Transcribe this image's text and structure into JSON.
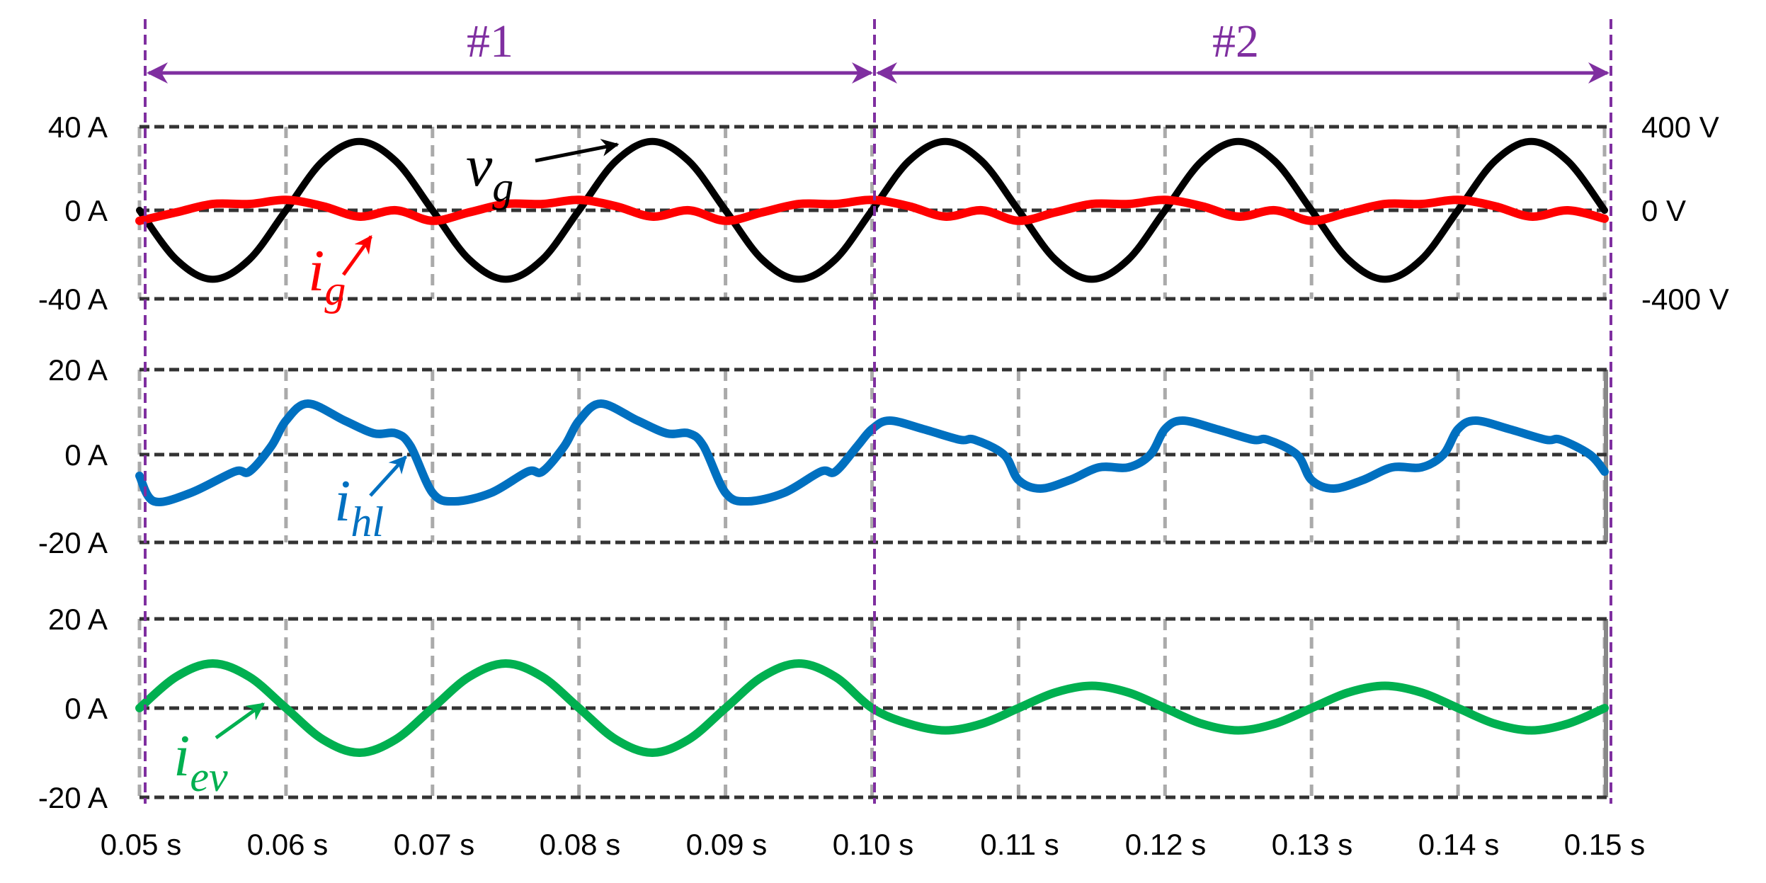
{
  "chart_data": {
    "type": "line",
    "title": "",
    "xlabel": "",
    "x_ticks": [
      "0.05 s",
      "0.06 s",
      "0.07 s",
      "0.08 s",
      "0.09 s",
      "0.10 s",
      "0.11 s",
      "0.12 s",
      "0.13 s",
      "0.14 s",
      "0.15 s"
    ],
    "xlim": [
      0.05,
      0.15
    ],
    "grid": true,
    "segments": [
      {
        "label": "#1",
        "start": 0.05,
        "end": 0.1
      },
      {
        "label": "#2",
        "start": 0.1,
        "end": 0.15
      }
    ],
    "panels": [
      {
        "name": "grid-voltage-current",
        "left_ticks": [
          "40 A",
          "0 A",
          "-40 A"
        ],
        "right_ticks": [
          "400 V",
          "0 V",
          "-400 V"
        ],
        "ylim_left": [
          -40,
          40
        ],
        "ylim_right": [
          -400,
          400
        ],
        "series": [
          {
            "name": "v_g",
            "label_main": "v",
            "label_sub": "g",
            "axis": "right",
            "color": "#000000",
            "description": "50 Hz grid voltage, ~335 V peak, flattened tops",
            "x": [
              0.05,
              0.0525,
              0.055,
              0.0575,
              0.06,
              0.0625,
              0.065,
              0.0675,
              0.07,
              0.0725,
              0.075,
              0.0775,
              0.08,
              0.0825,
              0.085,
              0.0875,
              0.09,
              0.0925,
              0.095,
              0.0975,
              0.1,
              0.1025,
              0.105,
              0.1075,
              0.11,
              0.1125,
              0.115,
              0.1175,
              0.12,
              0.1225,
              0.125,
              0.1275,
              0.13,
              0.1325,
              0.135,
              0.1375,
              0.14,
              0.1425,
              0.145,
              0.1475,
              0.15
            ],
            "values": [
              0,
              -235,
              -330,
              -235,
              0,
              235,
              330,
              235,
              0,
              -235,
              -330,
              -235,
              0,
              235,
              330,
              235,
              0,
              -235,
              -330,
              -235,
              0,
              235,
              330,
              235,
              0,
              -235,
              -330,
              -235,
              0,
              235,
              330,
              235,
              0,
              -235,
              -330,
              -235,
              0,
              235,
              330,
              235,
              0
            ]
          },
          {
            "name": "i_g",
            "label_main": "i",
            "label_sub": "g",
            "axis": "left",
            "color": "#ff0000",
            "description": "Grid current, small ripple around 0 A (~±5 A)",
            "x": [
              0.05,
              0.0525,
              0.055,
              0.0575,
              0.06,
              0.0625,
              0.065,
              0.0675,
              0.07,
              0.0725,
              0.075,
              0.0775,
              0.08,
              0.0825,
              0.085,
              0.0875,
              0.09,
              0.0925,
              0.095,
              0.0975,
              0.1,
              0.1025,
              0.105,
              0.1075,
              0.11,
              0.1125,
              0.115,
              0.1175,
              0.12,
              0.1225,
              0.125,
              0.1275,
              0.13,
              0.1325,
              0.135,
              0.1375,
              0.14,
              0.1425,
              0.145,
              0.1475,
              0.15
            ],
            "values": [
              -5,
              -1,
              3,
              3,
              5,
              2,
              -3,
              0,
              -5,
              -1,
              3,
              3,
              5,
              2,
              -3,
              0,
              -5,
              -1,
              3,
              3,
              5,
              2,
              -3,
              0,
              -5,
              -1,
              3,
              3,
              5,
              2,
              -3,
              0,
              -5,
              -1,
              3,
              3,
              5,
              2,
              -3,
              0,
              -4
            ]
          }
        ]
      },
      {
        "name": "home-load-current",
        "left_ticks": [
          "20 A",
          "0 A",
          "-20 A"
        ],
        "ylim_left": [
          -20,
          20
        ],
        "series": [
          {
            "name": "i_hl",
            "label_main": "i",
            "label_sub": "hl",
            "axis": "left",
            "color": "#0070c0",
            "description": "Home load current; ~±12 A in #1, ~±8 A in #2",
            "x": [
              0.05,
              0.051,
              0.0535,
              0.0565,
              0.0575,
              0.059,
              0.06,
              0.0615,
              0.064,
              0.066,
              0.0675,
              0.0685,
              0.07,
              0.0715,
              0.074,
              0.0765,
              0.0775,
              0.079,
              0.08,
              0.0815,
              0.084,
              0.086,
              0.0875,
              0.0885,
              0.09,
              0.0915,
              0.094,
              0.0965,
              0.0975,
              0.099,
              0.1,
              0.1012,
              0.1035,
              0.106,
              0.107,
              0.109,
              0.11,
              0.1115,
              0.1135,
              0.1155,
              0.1175,
              0.119,
              0.12,
              0.1212,
              0.1235,
              0.126,
              0.127,
              0.129,
              0.13,
              0.1315,
              0.1335,
              0.1355,
              0.1375,
              0.139,
              0.14,
              0.1412,
              0.1435,
              0.146,
              0.147,
              0.149,
              0.15
            ],
            "values": [
              -5,
              -11,
              -9,
              -4,
              -4,
              2,
              8,
              12,
              8,
              5,
              5,
              2,
              -9,
              -11,
              -9,
              -4,
              -4,
              2,
              8,
              12,
              8,
              5,
              5,
              2,
              -9,
              -11,
              -9,
              -4,
              -4,
              2,
              6,
              8,
              6,
              3.5,
              3.5,
              0,
              -6,
              -8,
              -6,
              -3,
              -3,
              0,
              6,
              8,
              6,
              3.5,
              3.5,
              0,
              -6,
              -8,
              -6,
              -3,
              -3,
              0,
              6,
              8,
              6,
              3.5,
              3.5,
              0,
              -4
            ]
          }
        ]
      },
      {
        "name": "ev-current",
        "left_ticks": [
          "20 A",
          "0 A",
          "-20 A"
        ],
        "ylim_left": [
          -20,
          20
        ],
        "series": [
          {
            "name": "i_ev",
            "label_main": "i",
            "label_sub": "ev",
            "axis": "left",
            "color": "#00b050",
            "description": "EV current; 10 A peak sinusoid in #1, ~5 A shifted sinusoid in #2",
            "x": [
              0.05,
              0.0525,
              0.055,
              0.0575,
              0.06,
              0.0625,
              0.065,
              0.0675,
              0.07,
              0.0725,
              0.075,
              0.0775,
              0.08,
              0.0825,
              0.085,
              0.0875,
              0.09,
              0.0925,
              0.095,
              0.0975,
              0.1,
              0.1025,
              0.105,
              0.1075,
              0.11,
              0.1125,
              0.115,
              0.1175,
              0.12,
              0.1225,
              0.125,
              0.1275,
              0.13,
              0.1325,
              0.135,
              0.1375,
              0.14,
              0.1425,
              0.145,
              0.1475,
              0.15
            ],
            "values": [
              0,
              7,
              10,
              7,
              0,
              -7,
              -10,
              -7,
              0,
              7,
              10,
              7,
              0,
              -7,
              -10,
              -7,
              0,
              7,
              10,
              7,
              0,
              -3.5,
              -5,
              -3.5,
              0,
              3.5,
              5,
              3.5,
              0,
              -3.5,
              -5,
              -3.5,
              0,
              3.5,
              5,
              3.5,
              0,
              -3.5,
              -5,
              -3.5,
              0
            ]
          }
        ]
      }
    ]
  },
  "colors": {
    "segment_marker": "#7f2fa0",
    "grid_major": "#333333",
    "grid_minor": "#aaaaaa",
    "panel_border": "#888888"
  }
}
